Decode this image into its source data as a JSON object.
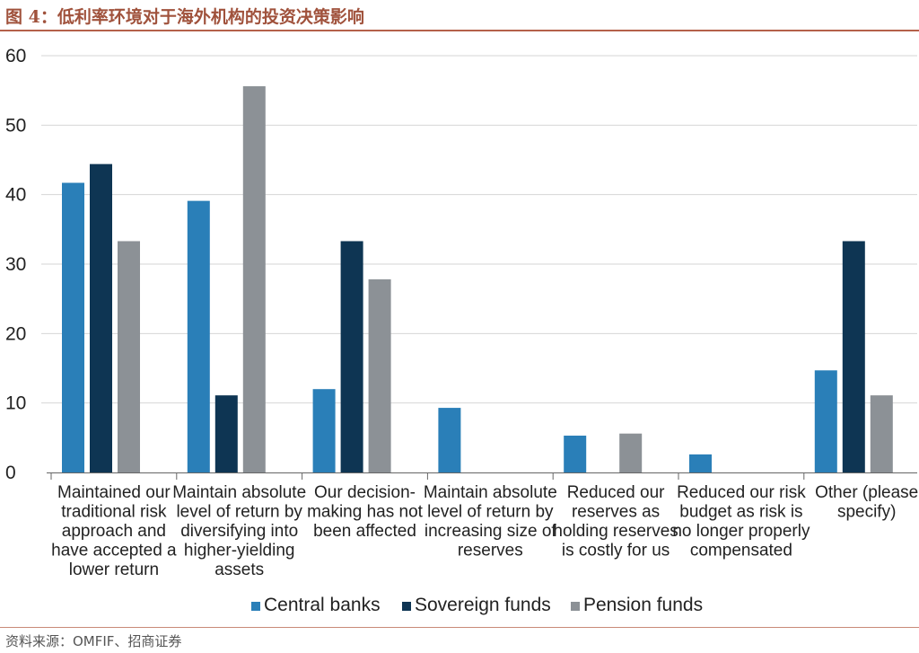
{
  "figure_title": "图 4：低利率环境对于海外机构的投资决策影响",
  "source_note": "资料来源：OMFIF、招商证券",
  "colors": {
    "central_banks": "#2a7fb8",
    "sovereign_funds": "#0e3553",
    "pension_funds": "#8c9196",
    "grid": "#d6d6d6",
    "axis_text": "#222222",
    "title": "#a0523c"
  },
  "chart_data": {
    "type": "bar",
    "ylim": [
      0,
      60
    ],
    "yticks": [
      0,
      10,
      20,
      30,
      40,
      50,
      60
    ],
    "grid": true,
    "legend_position": "bottom",
    "categories": [
      [
        "Maintained our",
        "traditional risk",
        "approach and",
        "have accepted a",
        "lower return"
      ],
      [
        "Maintain absolute",
        "level of return by",
        "diversifying into",
        "higher-yielding",
        "assets"
      ],
      [
        "Our decision-",
        "making has not",
        "been affected"
      ],
      [
        "Maintain absolute",
        "level of return by",
        "increasing size of",
        "reserves"
      ],
      [
        "Reduced our",
        "reserves as",
        "holding reserves",
        "is costly for us"
      ],
      [
        "Reduced our risk",
        "budget as risk is",
        "no longer properly",
        "compensated"
      ],
      [
        "Other (please",
        "specify)"
      ]
    ],
    "series": [
      {
        "name": "Central banks",
        "color_key": "central_banks",
        "values": [
          41.7,
          39.1,
          12.0,
          9.3,
          5.3,
          2.6,
          14.7
        ]
      },
      {
        "name": "Sovereign funds",
        "color_key": "sovereign_funds",
        "values": [
          44.4,
          11.1,
          33.3,
          0,
          0,
          0,
          33.3
        ]
      },
      {
        "name": "Pension funds",
        "color_key": "pension_funds",
        "values": [
          33.3,
          55.6,
          27.8,
          0,
          5.6,
          0,
          11.1
        ]
      }
    ]
  }
}
